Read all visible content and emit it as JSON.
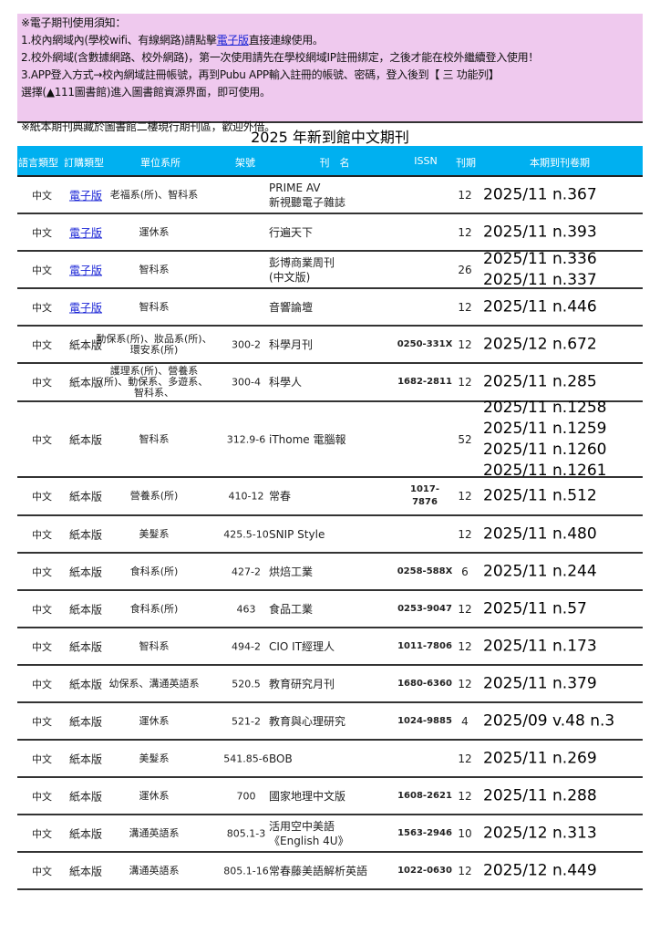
{
  "notice": {
    "heading": "※電子期刊使用須知：",
    "line1_pre": "1.校內網域內(學校wifi、有線網路)請點擊",
    "line1_link": "電子版",
    "line1_post": "直接連線使用。",
    "line2": "2.校外網域(含數據網路、校外網路)，第一次使用請先在學校網域IP註冊綁定，之後才能在校外繼續登入使用！",
    "line3": "3.APP登入方式→校內網域註冊帳號，再到Pubu APP輸入註冊的帳號、密碼，登入後到【 三 功能列】",
    "line4": "選擇(▲111圖書館)進入圖書館資源界面，即可使用。",
    "line5": "※紙本期刊典藏於圖書館二樓現行期刊區，歡迎外借。"
  },
  "table_title": "2025 年新到館中文期刊",
  "headers": [
    "語言類型",
    "訂購類型",
    "單位系所",
    "架號",
    "刊　名",
    "ISSN",
    "刊期",
    "本期到刊卷期"
  ],
  "colors": {
    "header_bg": "#00b0f0",
    "notice_bg": "#efc9ee",
    "link": "#1a24d6"
  },
  "rows": [
    {
      "lang": "中文",
      "type": "電子版",
      "dept": "老福系(所)、智科系",
      "call": "",
      "title": "PRIME AV\n新視聽電子雜誌",
      "issn": "",
      "freq": "12",
      "issue": "2025/11 n.367"
    },
    {
      "lang": "中文",
      "type": "電子版",
      "dept": "運休系",
      "call": "",
      "title": "行遍天下",
      "issn": "",
      "freq": "12",
      "issue": "2025/11 n.393"
    },
    {
      "lang": "中文",
      "type": "電子版",
      "dept": "智科系",
      "call": "",
      "title": "彭博商業周刊\n(中文版)",
      "issn": "",
      "freq": "26",
      "issue": "2025/11 n.336\n2025/11 n.337"
    },
    {
      "lang": "中文",
      "type": "電子版",
      "dept": "智科系",
      "call": "",
      "title": "音響論壇",
      "issn": "",
      "freq": "12",
      "issue": "2025/11 n.446"
    },
    {
      "lang": "中文",
      "type": "紙本版",
      "dept": "動保系(所)、妝品系(所)、\n環安系(所)",
      "call": "300-2",
      "title": "科學月刊",
      "issn": "0250-331X",
      "freq": "12",
      "issue": "2025/12 n.672"
    },
    {
      "lang": "中文",
      "type": "紙本版",
      "dept": "護理系(所)、營養系\n(所)、動保系、多遊系、\n智科系、",
      "call": "300-4",
      "title": "科學人",
      "issn": "1682-2811",
      "freq": "12",
      "issue": "2025/11 n.285"
    },
    {
      "lang": "中文",
      "type": "紙本版",
      "dept": "智科系",
      "call": "312.9-6",
      "title": "iThome 電腦報",
      "issn": "",
      "freq": "52",
      "issue": "2025/11 n.1258\n2025/11 n.1259\n2025/11 n.1260\n2025/11 n.1261"
    },
    {
      "lang": "中文",
      "type": "紙本版",
      "dept": "營養系(所)",
      "call": "410-12",
      "title": "常春",
      "issn": "1017-\n7876",
      "freq": "12",
      "issue": "2025/11 n.512"
    },
    {
      "lang": "中文",
      "type": "紙本版",
      "dept": "美髮系",
      "call": "425.5-10",
      "title": "SNIP Style",
      "issn": "",
      "freq": "12",
      "issue": "2025/11 n.480"
    },
    {
      "lang": "中文",
      "type": "紙本版",
      "dept": "食科系(所)",
      "call": "427-2",
      "title": "烘焙工業",
      "issn": "0258-588X",
      "freq": "6",
      "issue": "2025/11 n.244"
    },
    {
      "lang": "中文",
      "type": "紙本版",
      "dept": "食科系(所)",
      "call": "463",
      "title": "食品工業",
      "issn": "0253-9047",
      "freq": "12",
      "issue": "2025/11 n.57"
    },
    {
      "lang": "中文",
      "type": "紙本版",
      "dept": "智科系",
      "call": "494-2",
      "title": "CIO IT經理人",
      "issn": "1011-7806",
      "freq": "12",
      "issue": "2025/11 n.173"
    },
    {
      "lang": "中文",
      "type": "紙本版",
      "dept": "幼保系、溝通英語系",
      "call": "520.5",
      "title": "教育研究月刊",
      "issn": "1680-6360",
      "freq": "12",
      "issue": "2025/11 n.379"
    },
    {
      "lang": "中文",
      "type": "紙本版",
      "dept": "運休系",
      "call": "521-2",
      "title": "教育與心理研究",
      "issn": "1024-9885",
      "freq": "4",
      "issue": "2025/09 v.48 n.3"
    },
    {
      "lang": "中文",
      "type": "紙本版",
      "dept": "美髮系",
      "call": "541.85-6",
      "title": "BOB",
      "issn": "",
      "freq": "12",
      "issue": "2025/11 n.269"
    },
    {
      "lang": "中文",
      "type": "紙本版",
      "dept": "運休系",
      "call": "700",
      "title": "國家地理中文版",
      "issn": "1608-2621",
      "freq": "12",
      "issue": "2025/11 n.288"
    },
    {
      "lang": "中文",
      "type": "紙本版",
      "dept": "溝通英語系",
      "call": "805.1-3",
      "title": "活用空中美語\n《English 4U》",
      "issn": "1563-2946",
      "freq": "10",
      "issue": "2025/12 n.313"
    },
    {
      "lang": "中文",
      "type": "紙本版",
      "dept": "溝通英語系",
      "call": "805.1-16",
      "title": "常春藤美語解析英語",
      "issn": "1022-0630",
      "freq": "12",
      "issue": "2025/12 n.449"
    }
  ]
}
